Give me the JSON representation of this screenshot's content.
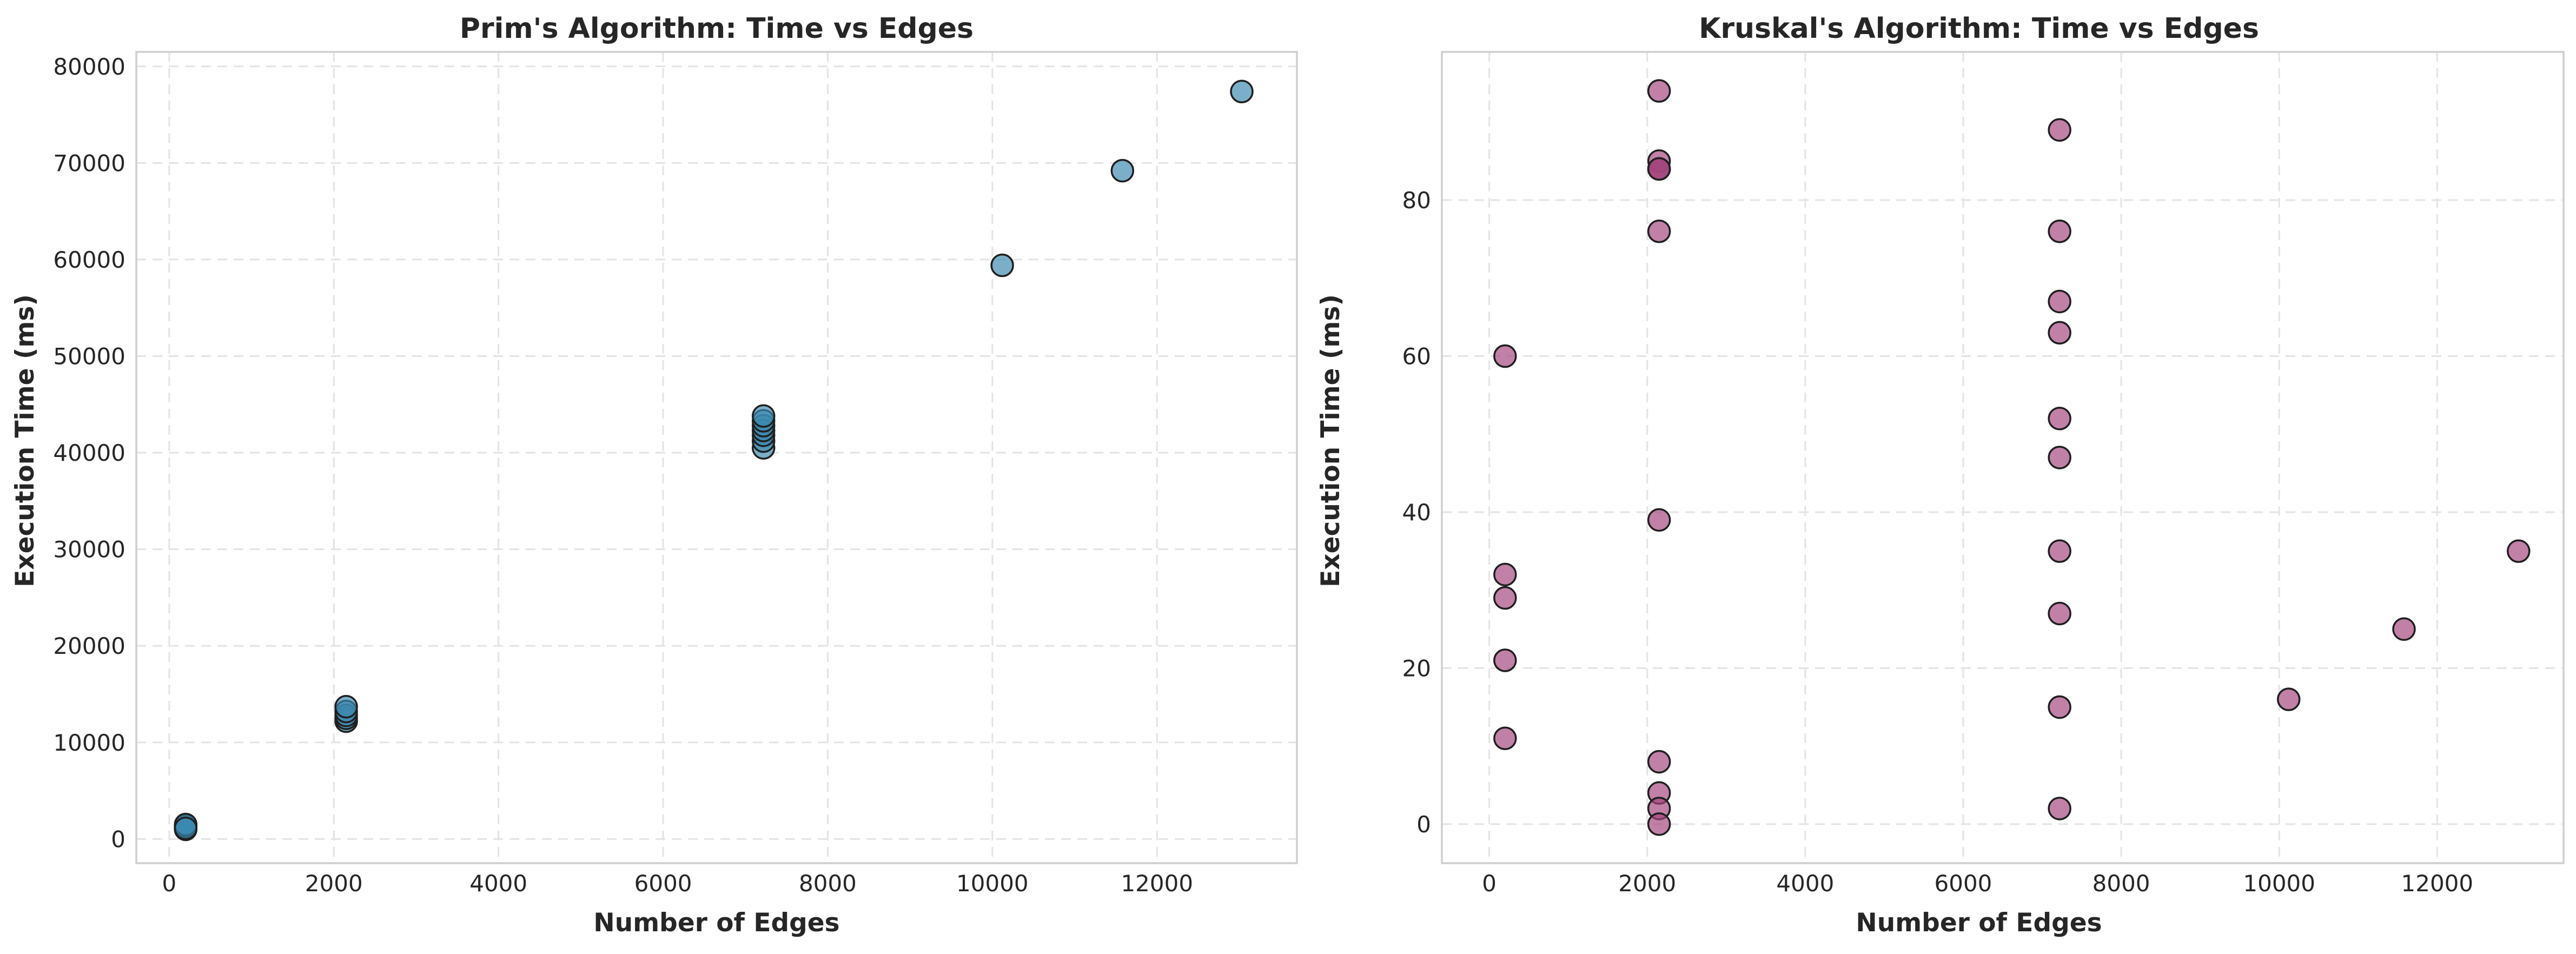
{
  "colors": {
    "prim_point": "#3d89b0",
    "kruskal_point": "#a4467e",
    "grid": "#e3e3e3",
    "frame": "#cfcfcf"
  },
  "chart_data": [
    {
      "type": "scatter",
      "title": "Prim's Algorithm: Time vs Edges",
      "xlabel": "Number of Edges",
      "ylabel": "Execution Time (ms)",
      "xlim": [
        -400,
        13700
      ],
      "ylim": [
        -2500,
        81500
      ],
      "xticks": [
        0,
        2000,
        4000,
        6000,
        8000,
        10000,
        12000
      ],
      "yticks": [
        0,
        10000,
        20000,
        30000,
        40000,
        50000,
        60000,
        70000,
        80000
      ],
      "grid": true,
      "series": [
        {
          "color": "#3d89b0",
          "points": [
            [
              200,
              1000
            ],
            [
              200,
              1200
            ],
            [
              200,
              1300
            ],
            [
              200,
              1400
            ],
            [
              200,
              1500
            ],
            [
              200,
              1100
            ],
            [
              2150,
              12200
            ],
            [
              2150,
              12500
            ],
            [
              2150,
              12800
            ],
            [
              2150,
              13200
            ],
            [
              2150,
              13700
            ],
            [
              7220,
              40500
            ],
            [
              7220,
              41200
            ],
            [
              7220,
              41800
            ],
            [
              7220,
              42300
            ],
            [
              7220,
              42800
            ],
            [
              7220,
              43300
            ],
            [
              7220,
              43800
            ],
            [
              10120,
              59400
            ],
            [
              11580,
              69200
            ],
            [
              13030,
              77400
            ]
          ]
        }
      ]
    },
    {
      "type": "scatter",
      "title": "Kruskal's Algorithm: Time vs Edges",
      "xlabel": "Number of Edges",
      "ylabel": "Execution Time (ms)",
      "xlim": [
        -600,
        13600
      ],
      "ylim": [
        -5,
        99
      ],
      "xticks": [
        0,
        2000,
        4000,
        6000,
        8000,
        10000,
        12000
      ],
      "yticks": [
        0,
        20,
        40,
        60,
        80
      ],
      "grid": true,
      "series": [
        {
          "color": "#a4467e",
          "points": [
            [
              200,
              60
            ],
            [
              200,
              32
            ],
            [
              200,
              29
            ],
            [
              200,
              21
            ],
            [
              200,
              11
            ],
            [
              2150,
              94
            ],
            [
              2150,
              85
            ],
            [
              2150,
              84
            ],
            [
              2150,
              84
            ],
            [
              2150,
              84
            ],
            [
              2150,
              76
            ],
            [
              2150,
              39
            ],
            [
              2150,
              8
            ],
            [
              2150,
              4
            ],
            [
              2150,
              2
            ],
            [
              2150,
              0
            ],
            [
              7220,
              89
            ],
            [
              7220,
              76
            ],
            [
              7220,
              67
            ],
            [
              7220,
              63
            ],
            [
              7220,
              52
            ],
            [
              7220,
              47
            ],
            [
              7220,
              35
            ],
            [
              7220,
              27
            ],
            [
              7220,
              15
            ],
            [
              7220,
              2
            ],
            [
              10120,
              16
            ],
            [
              11580,
              25
            ],
            [
              13030,
              35
            ]
          ]
        }
      ]
    }
  ]
}
